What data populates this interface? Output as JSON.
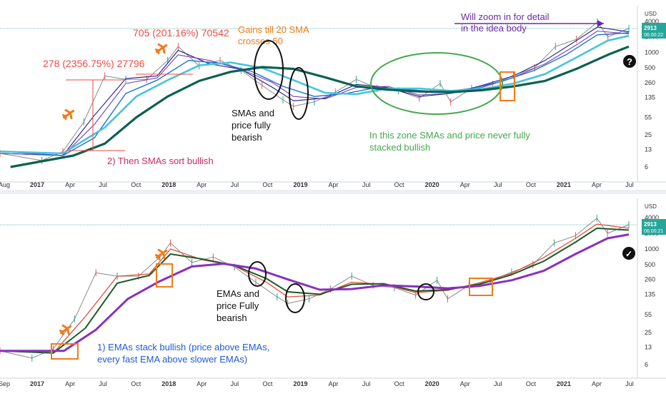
{
  "colors": {
    "price": "#8a8a8a",
    "sma_fast": "#1a1a8c",
    "sma_mid": "#7a3fa8",
    "sma_slow": "#1e6fd6",
    "sma_100": "#47c3dc",
    "sma_200": "#0b6151",
    "ema_fast": "#e0503a",
    "ema_mid": "#1f5a2a",
    "ema_slow": "#8a2fc0",
    "annot_red": "#ee4b43",
    "annot_orange": "#f07b17",
    "annot_green": "#45a84c",
    "annot_purple": "#6a2ca8",
    "annot_blue": "#1e5bd6",
    "annot_pink": "#d02a5e",
    "price_tag": "#26a69a"
  },
  "chart_data": [
    {
      "type": "line",
      "name": "top-panel-SMAs",
      "scale": "log",
      "y_unit_label": "USD",
      "y_ticks": [
        "4000",
        "2000",
        "1000",
        "500",
        "260",
        "135",
        "55",
        "25",
        "13",
        "6"
      ],
      "x_ticks": [
        "Aug",
        "2017",
        "Apr",
        "Jul",
        "Oct",
        "2018",
        "Apr",
        "Jul",
        "Oct",
        "2019",
        "Apr",
        "Jul",
        "Oct",
        "2020",
        "Apr",
        "Jul",
        "Oct",
        "2021",
        "Apr",
        "Jul"
      ],
      "price_tag": {
        "value": "2913",
        "time": "06:00:22"
      },
      "x_range": [
        "2016-08",
        "2021-08"
      ],
      "series": [
        {
          "key": "price",
          "x": [
            "2016-08",
            "2016-12",
            "2017-02",
            "2017-04",
            "2017-06",
            "2017-08",
            "2017-10",
            "2017-12",
            "2018-01",
            "2018-03",
            "2018-05",
            "2018-07",
            "2018-09",
            "2018-11",
            "2018-12",
            "2019-02",
            "2019-04",
            "2019-06",
            "2019-08",
            "2019-10",
            "2019-12",
            "2020-02",
            "2020-03",
            "2020-05",
            "2020-07",
            "2020-09",
            "2020-11",
            "2021-01",
            "2021-03",
            "2021-05",
            "2021-06",
            "2021-08"
          ],
          "y": [
            11,
            8,
            12,
            45,
            350,
            300,
            300,
            700,
            1300,
            550,
            700,
            450,
            230,
            120,
            90,
            110,
            170,
            300,
            200,
            180,
            130,
            250,
            110,
            200,
            240,
            360,
            500,
            1300,
            1800,
            3900,
            2000,
            2913
          ]
        },
        {
          "key": "sma_fast",
          "x": [
            "2016-08",
            "2017-02",
            "2017-05",
            "2017-08",
            "2017-11",
            "2018-01",
            "2018-04",
            "2018-07",
            "2018-10",
            "2018-12",
            "2019-03",
            "2019-06",
            "2019-09",
            "2019-12",
            "2020-03",
            "2020-06",
            "2020-09",
            "2020-12",
            "2021-03",
            "2021-05",
            "2021-08"
          ],
          "y": [
            11,
            10,
            60,
            310,
            350,
            1100,
            600,
            470,
            210,
            115,
            130,
            240,
            210,
            140,
            160,
            230,
            350,
            700,
            1700,
            3100,
            2500
          ]
        },
        {
          "key": "sma_mid",
          "x": [
            "2016-08",
            "2017-02",
            "2017-05",
            "2017-08",
            "2017-11",
            "2018-01",
            "2018-04",
            "2018-07",
            "2018-10",
            "2018-12",
            "2019-03",
            "2019-06",
            "2019-09",
            "2019-12",
            "2020-03",
            "2020-06",
            "2020-09",
            "2020-12",
            "2021-03",
            "2021-05",
            "2021-08"
          ],
          "y": [
            11,
            10,
            40,
            250,
            320,
            900,
            700,
            470,
            260,
            140,
            125,
            210,
            220,
            150,
            160,
            210,
            330,
            600,
            1400,
            2600,
            2300
          ]
        },
        {
          "key": "sma_slow",
          "x": [
            "2016-08",
            "2017-02",
            "2017-05",
            "2017-08",
            "2017-11",
            "2018-02",
            "2018-05",
            "2018-08",
            "2018-11",
            "2019-02",
            "2019-05",
            "2019-08",
            "2019-11",
            "2020-02",
            "2020-05",
            "2020-08",
            "2020-11",
            "2021-02",
            "2021-05",
            "2021-08"
          ],
          "y": [
            12,
            10,
            22,
            160,
            290,
            700,
            620,
            430,
            220,
            140,
            160,
            210,
            190,
            170,
            200,
            280,
            450,
            900,
            2200,
            2400
          ]
        },
        {
          "key": "sma_100",
          "x": [
            "2016-08",
            "2017-02",
            "2017-06",
            "2017-09",
            "2017-12",
            "2018-03",
            "2018-06",
            "2018-09",
            "2018-12",
            "2019-03",
            "2019-06",
            "2019-09",
            "2019-12",
            "2020-03",
            "2020-06",
            "2020-09",
            "2020-12",
            "2021-03",
            "2021-06",
            "2021-08"
          ],
          "y": [
            12,
            11,
            35,
            140,
            290,
            560,
            640,
            500,
            290,
            165,
            155,
            200,
            200,
            180,
            195,
            250,
            380,
            800,
            1700,
            2100
          ]
        },
        {
          "key": "sma_200",
          "x": [
            "2016-09",
            "2017-03",
            "2017-06",
            "2017-09",
            "2017-12",
            "2018-03",
            "2018-06",
            "2018-09",
            "2018-12",
            "2019-03",
            "2019-06",
            "2019-09",
            "2019-12",
            "2020-03",
            "2020-06",
            "2020-09",
            "2020-12",
            "2021-03",
            "2021-06",
            "2021-08"
          ],
          "y": [
            6,
            10,
            17,
            55,
            140,
            280,
            420,
            520,
            480,
            330,
            220,
            190,
            175,
            170,
            185,
            220,
            280,
            480,
            900,
            1300
          ]
        }
      ]
    },
    {
      "type": "line",
      "name": "bottom-panel-EMAs",
      "scale": "log",
      "y_unit_label": "USD",
      "y_ticks": [
        "4000",
        "2000",
        "1000",
        "500",
        "260",
        "135",
        "55",
        "25",
        "13",
        "6"
      ],
      "x_ticks": [
        "Sep",
        "2017",
        "Apr",
        "Jul",
        "Oct",
        "2018",
        "Apr",
        "Jul",
        "Oct",
        "2019",
        "Apr",
        "Jul",
        "Oct",
        "2020",
        "Apr",
        "Jul",
        "Oct",
        "2021",
        "Apr",
        "Jul"
      ],
      "price_tag": {
        "value": "2913",
        "time": "06:00:21"
      },
      "x_range": [
        "2016-09",
        "2021-08"
      ],
      "series": [
        {
          "key": "price",
          "x": [
            "2016-09",
            "2016-12",
            "2017-02",
            "2017-04",
            "2017-06",
            "2017-08",
            "2017-10",
            "2017-12",
            "2018-01",
            "2018-03",
            "2018-05",
            "2018-07",
            "2018-09",
            "2018-11",
            "2018-12",
            "2019-02",
            "2019-04",
            "2019-06",
            "2019-08",
            "2019-10",
            "2019-12",
            "2020-02",
            "2020-03",
            "2020-05",
            "2020-07",
            "2020-09",
            "2020-11",
            "2021-01",
            "2021-03",
            "2021-05",
            "2021-06",
            "2021-08"
          ],
          "y": [
            11,
            8,
            12,
            45,
            350,
            300,
            300,
            700,
            1300,
            550,
            700,
            450,
            230,
            120,
            90,
            110,
            170,
            300,
            200,
            180,
            130,
            250,
            110,
            200,
            240,
            360,
            500,
            1300,
            1800,
            3900,
            2000,
            2913
          ]
        },
        {
          "key": "ema_fast",
          "x": [
            "2016-09",
            "2017-02",
            "2017-05",
            "2017-08",
            "2017-11",
            "2018-01",
            "2018-04",
            "2018-07",
            "2018-10",
            "2018-12",
            "2019-03",
            "2019-06",
            "2019-09",
            "2019-12",
            "2020-03",
            "2020-06",
            "2020-09",
            "2020-12",
            "2021-03",
            "2021-05",
            "2021-08"
          ],
          "y": [
            11,
            10,
            50,
            300,
            330,
            1000,
            620,
            470,
            230,
            120,
            130,
            230,
            210,
            145,
            160,
            225,
            340,
            680,
            1600,
            3000,
            2500
          ]
        },
        {
          "key": "ema_mid",
          "x": [
            "2016-09",
            "2017-02",
            "2017-05",
            "2017-08",
            "2017-11",
            "2018-01",
            "2018-04",
            "2018-07",
            "2018-10",
            "2018-12",
            "2019-03",
            "2019-06",
            "2019-09",
            "2019-12",
            "2020-03",
            "2020-06",
            "2020-09",
            "2020-12",
            "2021-03",
            "2021-05",
            "2021-08"
          ],
          "y": [
            11,
            10,
            30,
            220,
            310,
            800,
            640,
            480,
            270,
            150,
            135,
            210,
            215,
            155,
            165,
            210,
            320,
            580,
            1350,
            2500,
            2300
          ]
        },
        {
          "key": "ema_slow",
          "x": [
            "2016-09",
            "2017-03",
            "2017-06",
            "2017-09",
            "2017-12",
            "2018-03",
            "2018-06",
            "2018-09",
            "2018-12",
            "2019-03",
            "2019-06",
            "2019-09",
            "2019-12",
            "2020-03",
            "2020-06",
            "2020-09",
            "2020-12",
            "2021-03",
            "2021-06",
            "2021-08"
          ],
          "y": [
            11,
            11,
            28,
            110,
            240,
            460,
            520,
            420,
            260,
            165,
            170,
            200,
            190,
            175,
            195,
            250,
            380,
            800,
            1600,
            1900
          ]
        }
      ]
    }
  ],
  "annotations": {
    "gain1": "278 (2356.75%) 27796",
    "gain2": "705 (201.16%) 70542",
    "gains_till_line1": "Gains till 20 SMA",
    "gains_till_line2": "crosses 50",
    "zoom_line1": "Will zoom in for detail",
    "zoom_line2": "in the idea body",
    "then_smas": "2) Then SMAs sort bullish",
    "smas_bearish_line1": "SMAs and",
    "smas_bearish_line2": "price fully",
    "smas_bearish_line3": "bearish",
    "zone_line1": "In this zone SMAs and price never fully",
    "zone_line2": "stacked bullish",
    "emas_bearish_line1": "EMAs and",
    "emas_bearish_line2": "price Fully",
    "emas_bearish_line3": "bearish",
    "emas_stack_line1": "1) EMAs stack bullish (price above EMAs,",
    "emas_stack_line2": "every fast EMA above slower EMAs)",
    "question_mark": "?",
    "check_mark": "✓"
  }
}
